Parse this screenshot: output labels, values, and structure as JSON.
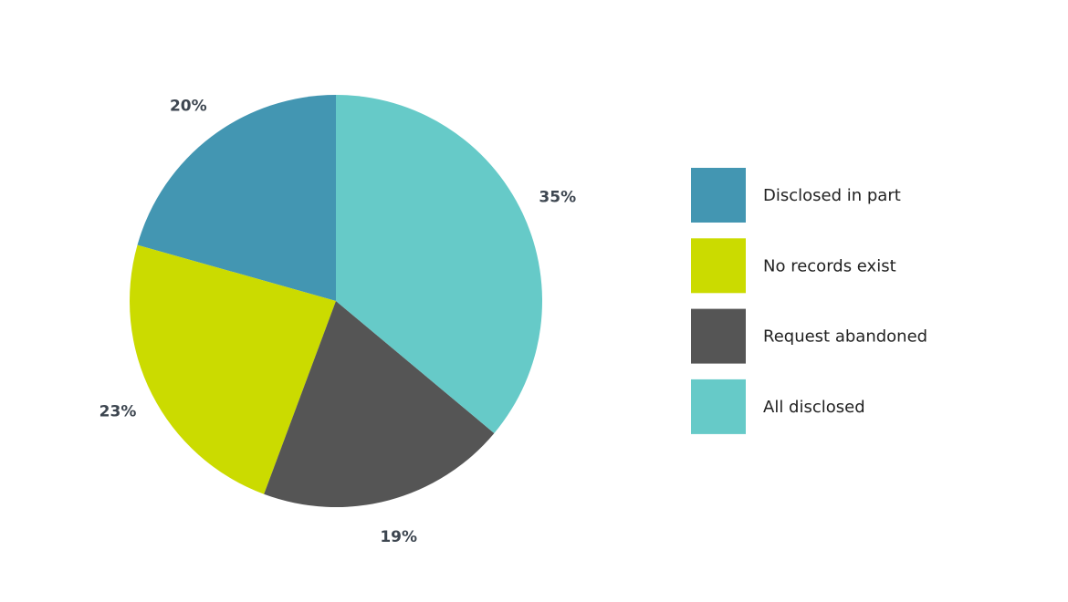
{
  "chart_data": {
    "type": "pie",
    "categories": [
      "Disclosed in part",
      "No records exist",
      "Request abandoned",
      "All disclosed"
    ],
    "values": [
      20,
      23,
      19,
      35
    ],
    "value_labels": [
      "20%",
      "23%",
      "19%",
      "35%"
    ],
    "colors": [
      "#4396b2",
      "#cbdb00",
      "#555555",
      "#66cac8"
    ],
    "direction": "counterclockwise",
    "legend": "right"
  }
}
